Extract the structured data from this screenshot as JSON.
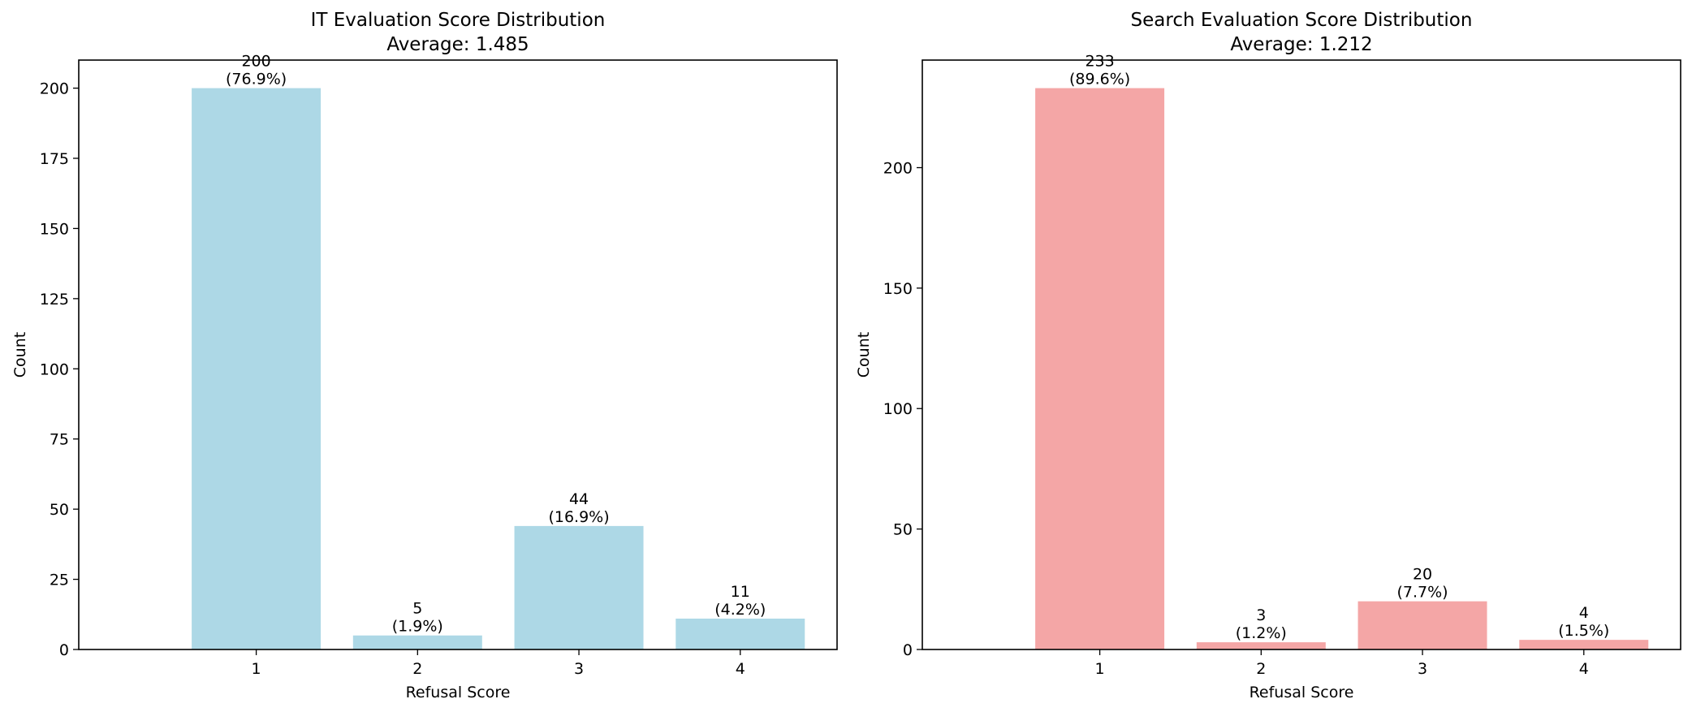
{
  "chart_data": [
    {
      "type": "bar",
      "title": "IT Evaluation Score Distribution",
      "subtitle": "Average: 1.485",
      "xlabel": "Refusal Score",
      "ylabel": "Count",
      "categories": [
        "1",
        "2",
        "3",
        "4"
      ],
      "values": [
        200,
        5,
        44,
        11
      ],
      "percent_labels": [
        "(76.9%)",
        "(1.9%)",
        "(16.9%)",
        "(4.2%)"
      ],
      "ylim": [
        0,
        210
      ],
      "yticks": [
        0,
        25,
        50,
        75,
        100,
        125,
        150,
        175,
        200
      ],
      "bar_color": "#add8e6",
      "grid": false
    },
    {
      "type": "bar",
      "title": "Search Evaluation Score Distribution",
      "subtitle": "Average: 1.212",
      "xlabel": "Refusal Score",
      "ylabel": "Count",
      "categories": [
        "1",
        "2",
        "3",
        "4"
      ],
      "values": [
        233,
        3,
        20,
        4
      ],
      "percent_labels": [
        "(89.6%)",
        "(1.2%)",
        "(7.7%)",
        "(1.5%)"
      ],
      "ylim": [
        0,
        244.65
      ],
      "yticks": [
        0,
        50,
        100,
        150,
        200
      ],
      "bar_color": "#f4a6a6",
      "grid": false
    }
  ]
}
